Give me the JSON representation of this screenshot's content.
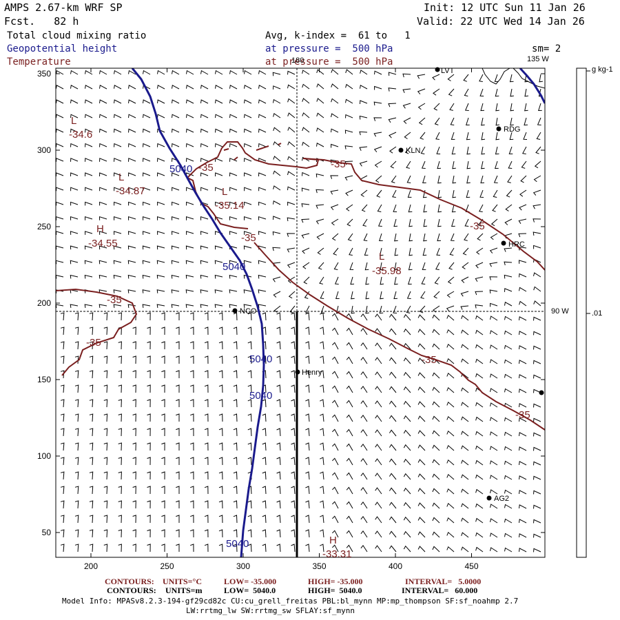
{
  "header": {
    "model": "AMPS 2.67-km WRF SP",
    "fcst": "Fcst.   82 h",
    "init": "Init: 12 UTC Sun 11 Jan 26",
    "valid": "Valid: 22 UTC Wed 14 Jan 26",
    "field1": "Total cloud mixing ratio",
    "field2": "Geopotential height",
    "field3": "Temperature",
    "avg": "Avg, k-index =  61 to   1",
    "press1": "at pressure =  500 hPa",
    "press2": "at pressure =  500 hPa",
    "sm": "sm= 2"
  },
  "map": {
    "x_ticks": [
      "200",
      "250",
      "300",
      "350",
      "400",
      "450"
    ],
    "y_ticks": [
      "350",
      "300",
      "250",
      "200",
      "150",
      "100",
      "50"
    ],
    "meridian_180": "180",
    "meridian_135w": "135 W",
    "meridian_90w": "90 W",
    "stations": [
      {
        "name": "LVT",
        "label": "LVT"
      },
      {
        "name": "RDG",
        "label": "RDG"
      },
      {
        "name": "KLN",
        "label": "KLN"
      },
      {
        "name": "HRC",
        "label": "HRC"
      },
      {
        "name": "NCO",
        "label": "NCO"
      },
      {
        "name": "Henry",
        "label": "Henry"
      },
      {
        "name": "AG2",
        "label": "AG2"
      }
    ],
    "extremes": [
      {
        "type": "L",
        "value": "-34.6"
      },
      {
        "type": "L",
        "value": "-34.87"
      },
      {
        "type": "L",
        "value": "-35.14"
      },
      {
        "type": "H",
        "value": "-34.55"
      },
      {
        "type": "L",
        "value": "-35.98"
      },
      {
        "type": "H",
        "value": "-33.31"
      }
    ],
    "temp_labels": [
      "-35",
      "-35",
      "-35",
      "-35",
      "-35",
      "-35",
      "-35",
      "-35"
    ],
    "height_labels": [
      "5040",
      "5040",
      "5040",
      "5040",
      "5040"
    ]
  },
  "colorbar": {
    "unit": "g kg-1",
    "tick": ".01"
  },
  "footer": {
    "row1": {
      "label": "CONTOURS:",
      "units": "UNITS=°C",
      "low": "LOW= -35.000",
      "high": "HIGH= -35.000",
      "interval": "INTERVAL=   5.0000"
    },
    "row2": {
      "label": "CONTOURS:",
      "units": "UNITS=m",
      "low": "LOW=  5040.0",
      "high": "HIGH=  5040.0",
      "interval": "INTERVAL=   60.000"
    },
    "info1": "Model Info: MPASv8.2.3-194-gf29cd82c CU:cu_grell_freitas PBL:bl_mynn MP:mp_thompson SF:sf_noahmp 2.7",
    "info2": "LW:rrtmg_lw SW:rrtmg_sw SFLAY:sf_mynn"
  },
  "colors": {
    "temperature": "#7a1f1f",
    "height": "#1a1a8c",
    "text": "#000000"
  }
}
